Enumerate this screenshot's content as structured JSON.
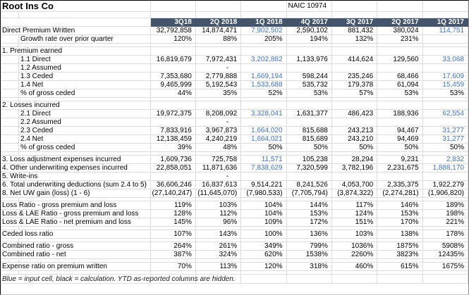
{
  "title": "Root Ins Co",
  "naic_label": "NAIC 10974",
  "colors": {
    "header_bg": "#44546A",
    "header_text": "#FFFFFF",
    "input_blue": "#4472C4",
    "gridline": "#DCDCDC"
  },
  "columns": [
    "3Q18",
    "2Q 2018",
    "1Q 2018",
    "4Q 2017",
    "3Q 2017",
    "2Q 2017",
    "1Q 2017"
  ],
  "footnote": "Blue = input cell, black = calculation.  YTD as-reported columns are hidden.",
  "rows": [
    {
      "label": "Direct Premium Written",
      "indent": false,
      "cells": [
        "32,792,858",
        "14,874,471",
        "7,902,502",
        "2,590,102",
        "881,432",
        "380,024",
        "114,751"
      ],
      "blue": [
        2,
        6
      ]
    },
    {
      "label": "Growth rate over prior quarter",
      "indent": true,
      "cells": [
        "120%",
        "88%",
        "205%",
        "194%",
        "132%",
        "231%",
        ""
      ],
      "blue": []
    },
    {
      "type": "spacer"
    },
    {
      "label": "1. Premium earned",
      "indent": false,
      "cells": [
        "",
        "",
        "",
        "",
        "",
        "",
        ""
      ],
      "blue": []
    },
    {
      "label": "1.1 Direct",
      "indent": true,
      "cells": [
        "16,819,679",
        "7,972,431",
        "3,202,882",
        "1,133,976",
        "414,624",
        "129,560",
        "33,068"
      ],
      "blue": [
        2,
        6
      ]
    },
    {
      "label": "1.2 Assumed",
      "indent": true,
      "cells": [
        "",
        "-",
        "",
        "",
        "",
        "",
        ""
      ],
      "blue": []
    },
    {
      "label": "1.3 Ceded",
      "indent": true,
      "cells": [
        "7,353,680",
        "2,779,888",
        "1,669,194",
        "598,244",
        "235,246",
        "68,466",
        "17,609"
      ],
      "blue": [
        2,
        6
      ]
    },
    {
      "label": "1.4 Net",
      "indent": true,
      "cells": [
        "9,465,999",
        "5,192,543",
        "1,533,688",
        "535,732",
        "179,378",
        "61,094",
        "15,459"
      ],
      "blue": [
        2,
        6
      ]
    },
    {
      "label": "% of gross ceded",
      "indent": true,
      "cells": [
        "44%",
        "35%",
        "52%",
        "53%",
        "57%",
        "53%",
        "53%"
      ],
      "blue": []
    },
    {
      "type": "spacer"
    },
    {
      "label": "2. Losses incurred",
      "indent": false,
      "cells": [
        "",
        "",
        "",
        "",
        "",
        "",
        ""
      ],
      "blue": []
    },
    {
      "label": "2.1 Direct",
      "indent": true,
      "cells": [
        "19,972,375",
        "8,208,092",
        "3,328,041",
        "1,631,377",
        "486,423",
        "188,936",
        "62,554"
      ],
      "blue": [
        2,
        6
      ]
    },
    {
      "label": "2.2 Assumed",
      "indent": true,
      "cells": [
        "",
        "-",
        "",
        "",
        "",
        "",
        ""
      ],
      "blue": []
    },
    {
      "label": "2.3 Ceded",
      "indent": true,
      "cells": [
        "7,833,916",
        "3,967,873",
        "1,664,020",
        "815,688",
        "243,213",
        "94,467",
        "31,277"
      ],
      "blue": [
        2,
        6
      ]
    },
    {
      "label": "2.4 Net",
      "indent": true,
      "cells": [
        "12,138,459",
        "4,240,219",
        "1,664,021",
        "815,689",
        "243,210",
        "94,469",
        "31,277"
      ],
      "blue": [
        2,
        6
      ]
    },
    {
      "label": "% of gross ceded",
      "indent": true,
      "cells": [
        "39%",
        "48%",
        "50%",
        "50%",
        "50%",
        "50%",
        "50%"
      ],
      "blue": []
    },
    {
      "type": "spacer"
    },
    {
      "label": "3. Loss adjustment expenses incurred",
      "indent": false,
      "cells": [
        "1,609,736",
        "725,758",
        "11,571",
        "105,238",
        "28,294",
        "9,231",
        "2,832"
      ],
      "blue": [
        2,
        6
      ]
    },
    {
      "label": "4. Other underwriting expenses incurred",
      "indent": false,
      "cells": [
        "22,858,051",
        "11,871,636",
        "7,838,629",
        "7,320,599",
        "3,782,196",
        "2,231,675",
        "1,888,170"
      ],
      "blue": [
        2,
        6
      ]
    },
    {
      "label": "5. Write-ins",
      "indent": false,
      "cells": [
        "",
        "-",
        "",
        "",
        "",
        "",
        ""
      ],
      "blue": []
    },
    {
      "label": "6. Total underwriting deductions (sum 2.4 to 5)",
      "indent": false,
      "cells": [
        "36,606,246",
        "16,837,613",
        "9,514,221",
        "8,241,526",
        "4,053,700",
        "2,335,375",
        "1,922,279"
      ],
      "blue": []
    },
    {
      "label": "8. Net UW gain (loss) (1 - 6)",
      "indent": false,
      "cells": [
        "(27,140,247)",
        "(11,645,070)",
        "(7,980,533)",
        "(7,705,794)",
        "(3,874,322)",
        "(2,274,281)",
        "(1,906,820)"
      ],
      "blue": []
    },
    {
      "type": "spacer"
    },
    {
      "label": "Loss Ratio - gross premium and loss",
      "indent": false,
      "cells": [
        "119%",
        "103%",
        "104%",
        "144%",
        "117%",
        "146%",
        "189%"
      ],
      "blue": []
    },
    {
      "label": "Loss & LAE Ratio - gross premium and loss",
      "indent": false,
      "cells": [
        "128%",
        "112%",
        "104%",
        "153%",
        "124%",
        "153%",
        "198%"
      ],
      "blue": []
    },
    {
      "label": "Loss & LAE Ratio - net premium and loss",
      "indent": false,
      "cells": [
        "145%",
        "96%",
        "109%",
        "172%",
        "151%",
        "170%",
        "221%"
      ],
      "blue": []
    },
    {
      "type": "spacer"
    },
    {
      "label": "Ceded loss ratio",
      "indent": false,
      "cells": [
        "107%",
        "143%",
        "100%",
        "136%",
        "103%",
        "138%",
        "178%"
      ],
      "blue": []
    },
    {
      "type": "spacer"
    },
    {
      "label": "Combined ratio - gross",
      "indent": false,
      "cells": [
        "264%",
        "261%",
        "349%",
        "799%",
        "1036%",
        "1875%",
        "5908%"
      ],
      "blue": []
    },
    {
      "label": "Combined ratio - net",
      "indent": false,
      "cells": [
        "387%",
        "324%",
        "620%",
        "1538%",
        "2260%",
        "3823%",
        "12435%"
      ],
      "blue": []
    },
    {
      "type": "spacer"
    },
    {
      "label": "Expense ratio on premium written",
      "indent": false,
      "cells": [
        "70%",
        "113%",
        "120%",
        "318%",
        "460%",
        "615%",
        "1675%"
      ],
      "blue": []
    },
    {
      "type": "spacer"
    }
  ]
}
